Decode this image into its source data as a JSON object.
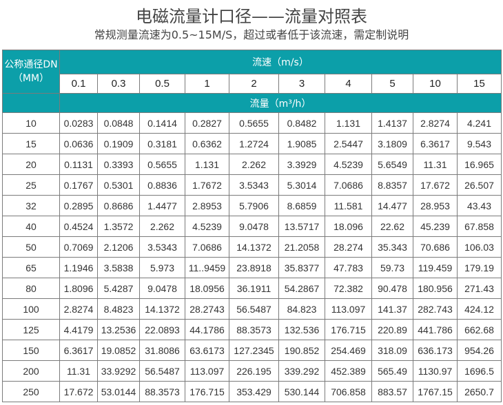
{
  "title": "电磁流量计口径——流量对照表",
  "subtitle": "常规测量流速为0.5~15M/S，超过或者低于该流速，需定制说明",
  "table": {
    "dn_header_line1": "公称通径DN",
    "dn_header_line2": "（MM）",
    "velocity_header": "流速（m/s）",
    "flow_header": "流量（m³/h）",
    "velocities": [
      "0.1",
      "0.3",
      "0.5",
      "1",
      "2",
      "3",
      "4",
      "5",
      "10",
      "15"
    ],
    "rows": [
      {
        "dn": "10",
        "values": [
          "0.0283",
          "0.0848",
          "0.1414",
          "0.2827",
          "0.5655",
          "0.8482",
          "1.131",
          "1.4137",
          "2.8274",
          "4.241"
        ]
      },
      {
        "dn": "15",
        "values": [
          "0.0636",
          "0.1909",
          "0.3181",
          "0.6362",
          "1.2724",
          "1.9085",
          "2.5447",
          "3.1809",
          "6.3617",
          "9.543"
        ]
      },
      {
        "dn": "20",
        "values": [
          "0.1131",
          "0.3393",
          "0.5655",
          "1.131",
          "2.262",
          "3.3929",
          "4.5239",
          "5.6549",
          "11.31",
          "16.965"
        ]
      },
      {
        "dn": "25",
        "values": [
          "0.1767",
          "0.5301",
          "0.8836",
          "1.7672",
          "3.5343",
          "5.3014",
          "7.0686",
          "8.8357",
          "17.672",
          "26.507"
        ]
      },
      {
        "dn": "32",
        "values": [
          "0.2895",
          "0.8686",
          "1.4477",
          "2.8953",
          "5.7906",
          "8.6859",
          "11.581",
          "14.477",
          "28.953",
          "43.43"
        ]
      },
      {
        "dn": "40",
        "values": [
          "0.4524",
          "1.3572",
          "2.262",
          "4.5239",
          "9.0478",
          "13.5717",
          "18.096",
          "22.62",
          "45.239",
          "67.858"
        ]
      },
      {
        "dn": "50",
        "values": [
          "0.7069",
          "2.1206",
          "3.5343",
          "7.0686",
          "14.1372",
          "21.2058",
          "28.274",
          "35.343",
          "70.686",
          "106.03"
        ]
      },
      {
        "dn": "65",
        "values": [
          "1.1946",
          "3.5838",
          "5.973",
          "11..9459",
          "23.8918",
          "35.8377",
          "47.783",
          "59.73",
          "119.459",
          "179.19"
        ]
      },
      {
        "dn": "80",
        "values": [
          "1.8096",
          "5.4287",
          "9.0478",
          "18.0956",
          "36.1911",
          "54.2867",
          "72.382",
          "90.478",
          "180.956",
          "271.43"
        ]
      },
      {
        "dn": "100",
        "values": [
          "2.8274",
          "8.4823",
          "14.1372",
          "28.2743",
          "56.5487",
          "84.823",
          "113.097",
          "141.37",
          "282.743",
          "424.12"
        ]
      },
      {
        "dn": "125",
        "values": [
          "4.4179",
          "13.2536",
          "22.0893",
          "44.1786",
          "88.3573",
          "132.536",
          "176.715",
          "220.89",
          "441.786",
          "662.68"
        ]
      },
      {
        "dn": "150",
        "values": [
          "6.3617",
          "19.0852",
          "31.8086",
          "63.6173",
          "127.2345",
          "190.852",
          "254.469",
          "318.09",
          "636.173",
          "954.26"
        ]
      },
      {
        "dn": "200",
        "values": [
          "11.31",
          "33.9292",
          "56.5487",
          "113.097",
          "226.195",
          "339.292",
          "452.389",
          "565.49",
          "1130.97",
          "1696.5"
        ]
      },
      {
        "dn": "250",
        "values": [
          "17.672",
          "53.0144",
          "88.3573",
          "176.715",
          "353.429",
          "530.144",
          "706.858",
          "883.57",
          "1767.15",
          "2650.7"
        ]
      }
    ]
  },
  "colors": {
    "header_teal": "#0c9fa9",
    "border": "#7a7a7a",
    "text": "#333333"
  }
}
